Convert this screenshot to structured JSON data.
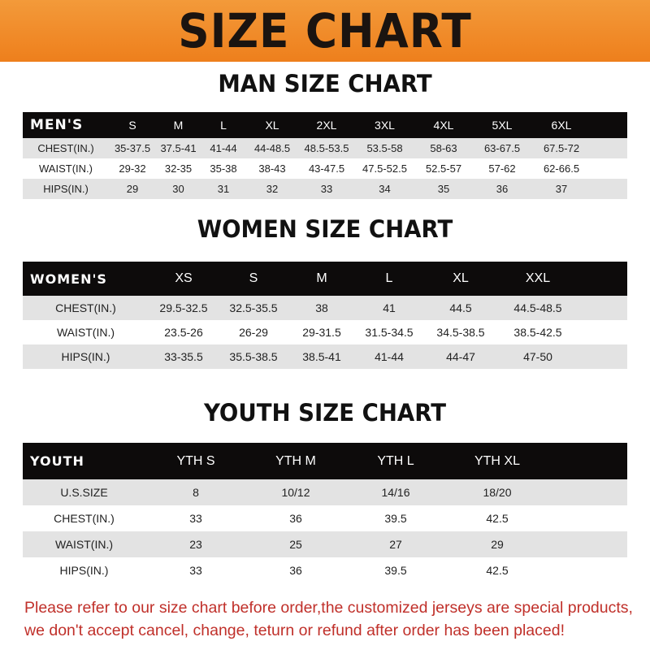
{
  "banner": {
    "title": "SIZE CHART",
    "color": "#ee7f1c"
  },
  "men": {
    "title": "MAN SIZE CHART",
    "header": [
      "MEN'S",
      "S",
      "M",
      "L",
      "XL",
      "2XL",
      "3XL",
      "4XL",
      "5XL",
      "6XL"
    ],
    "rows": [
      [
        "CHEST(IN.)",
        "35-37.5",
        "37.5-41",
        "41-44",
        "44-48.5",
        "48.5-53.5",
        "53.5-58",
        "58-63",
        "63-67.5",
        "67.5-72"
      ],
      [
        "WAIST(IN.)",
        "29-32",
        "32-35",
        "35-38",
        "38-43",
        "43-47.5",
        "47.5-52.5",
        "52.5-57",
        "57-62",
        "62-66.5"
      ],
      [
        "HIPS(IN.)",
        "29",
        "30",
        "31",
        "32",
        "33",
        "34",
        "35",
        "36",
        "37"
      ]
    ]
  },
  "women": {
    "title": "WOMEN SIZE CHART",
    "header": [
      "WOMEN'S",
      "XS",
      "S",
      "M",
      "L",
      "XL",
      "XXL"
    ],
    "rows": [
      [
        "CHEST(IN.)",
        "29.5-32.5",
        "32.5-35.5",
        "38",
        "41",
        "44.5",
        "44.5-48.5"
      ],
      [
        "WAIST(IN.)",
        "23.5-26",
        "26-29",
        "29-31.5",
        "31.5-34.5",
        "34.5-38.5",
        "38.5-42.5"
      ],
      [
        "HIPS(IN.)",
        "33-35.5",
        "35.5-38.5",
        "38.5-41",
        "41-44",
        "44-47",
        "47-50"
      ]
    ]
  },
  "youth": {
    "title": "YOUTH SIZE CHART",
    "header": [
      "YOUTH",
      "YTH S",
      "YTH M",
      "YTH L",
      "YTH XL"
    ],
    "rows": [
      [
        "U.S.SIZE",
        "8",
        "10/12",
        "14/16",
        "18/20"
      ],
      [
        "CHEST(IN.)",
        "33",
        "36",
        "39.5",
        "42.5"
      ],
      [
        "WAIST(IN.)",
        "23",
        "25",
        "27",
        "29"
      ],
      [
        "HIPS(IN.)",
        "33",
        "36",
        "39.5",
        "42.5"
      ]
    ]
  },
  "note": {
    "line1": "Please refer to our size chart before order,the customized jerseys are special products,",
    "line2": "we don't accept cancel, change, teturn or refund after order has been placed!",
    "color": "#c0302a"
  }
}
